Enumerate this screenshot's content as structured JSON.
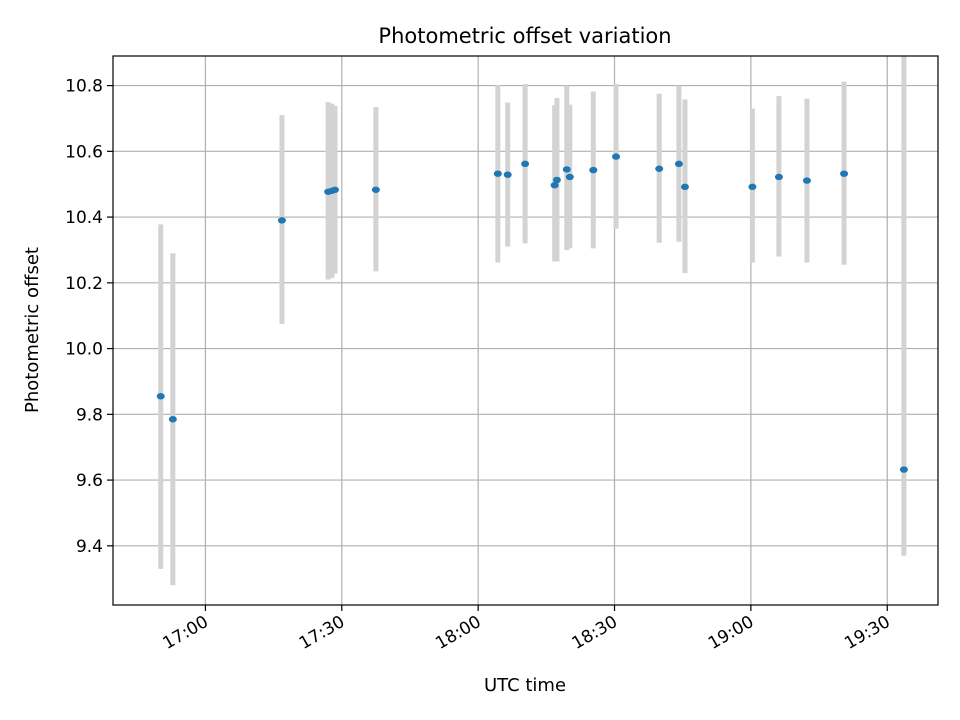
{
  "chart_data": {
    "type": "scatter",
    "title": "Photometric offset variation",
    "xlabel": "UTC time",
    "ylabel": "Photometric offset",
    "grid": true,
    "xlim": [
      "16:39:40",
      "19:41:10"
    ],
    "ylim": [
      9.22,
      10.89
    ],
    "x_ticks": [
      "17:00",
      "17:30",
      "18:00",
      "18:30",
      "19:00",
      "19:30"
    ],
    "y_ticks": [
      9.4,
      9.6,
      9.8,
      10.0,
      10.2,
      10.4,
      10.6,
      10.8
    ],
    "y_tick_labels": [
      "9.4",
      "9.6",
      "9.8",
      "10.0",
      "10.2",
      "10.4",
      "10.6",
      "10.8"
    ],
    "colors": {
      "points": "#1f77b4",
      "error_bars": "#d3d3d3",
      "grid": "#b0b0b0"
    },
    "series": [
      {
        "x": [
          "16:50:10",
          "16:52:50",
          "17:16:50",
          "17:27:00",
          "17:27:50",
          "17:28:30",
          "17:37:30",
          "18:04:20",
          "18:06:30",
          "18:10:20",
          "18:16:50",
          "18:17:20",
          "18:19:30",
          "18:20:10",
          "18:25:20",
          "18:30:20",
          "18:39:50",
          "18:44:10",
          "18:45:30",
          "19:00:20",
          "19:06:10",
          "19:12:20",
          "19:20:30",
          "19:33:40"
        ],
        "y": [
          9.855,
          9.785,
          10.39,
          10.477,
          10.48,
          10.483,
          10.483,
          10.532,
          10.529,
          10.562,
          10.497,
          10.513,
          10.545,
          10.522,
          10.543,
          10.584,
          10.547,
          10.562,
          10.492,
          10.492,
          10.522,
          10.511,
          10.532,
          9.632
        ],
        "yerr_low": [
          9.33,
          9.28,
          10.075,
          10.21,
          10.215,
          10.228,
          10.235,
          10.262,
          10.31,
          10.32,
          10.265,
          10.265,
          10.3,
          10.305,
          10.305,
          10.365,
          10.322,
          10.325,
          10.23,
          10.262,
          10.28,
          10.262,
          10.255,
          9.37
        ],
        "yerr_high": [
          10.378,
          10.29,
          10.71,
          10.75,
          10.745,
          10.738,
          10.735,
          10.802,
          10.748,
          10.805,
          10.74,
          10.762,
          10.8,
          10.742,
          10.782,
          10.805,
          10.775,
          10.8,
          10.758,
          10.73,
          10.768,
          10.76,
          10.812,
          10.892
        ]
      }
    ]
  }
}
